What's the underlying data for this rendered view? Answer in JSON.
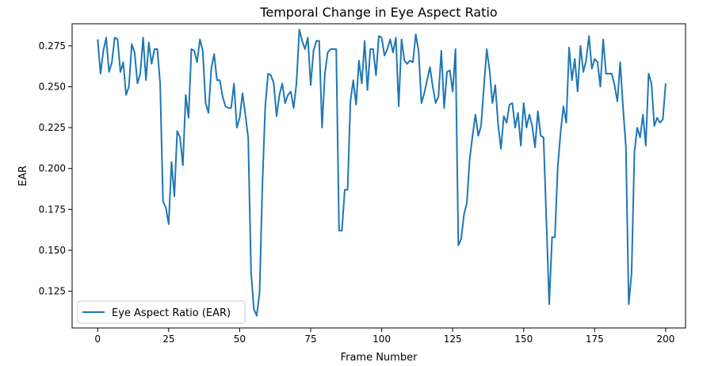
{
  "chart_data": {
    "type": "line",
    "title": "Temporal Change in Eye Aspect Ratio",
    "xlabel": "Frame Number",
    "ylabel": "EAR",
    "xlim": [
      -9,
      207
    ],
    "ylim": [
      0.1025,
      0.2885
    ],
    "xticks": [
      0,
      25,
      50,
      75,
      100,
      125,
      150,
      175,
      200
    ],
    "yticks": [
      0.125,
      0.15,
      0.175,
      0.2,
      0.225,
      0.25,
      0.275
    ],
    "ytick_labels": [
      "0.125",
      "0.150",
      "0.175",
      "0.200",
      "0.225",
      "0.250",
      "0.275"
    ],
    "grid": false,
    "legend_position": "lower-left",
    "series": [
      {
        "name": "Eye Aspect Ratio (EAR)",
        "color": "#1f77b4",
        "x": [
          0,
          1,
          2,
          3,
          4,
          5,
          6,
          7,
          8,
          9,
          10,
          11,
          12,
          13,
          14,
          15,
          16,
          17,
          18,
          19,
          20,
          21,
          22,
          23,
          24,
          25,
          26,
          27,
          28,
          29,
          30,
          31,
          32,
          33,
          34,
          35,
          36,
          37,
          38,
          39,
          40,
          41,
          42,
          43,
          44,
          45,
          46,
          47,
          48,
          49,
          50,
          51,
          52,
          53,
          54,
          55,
          56,
          57,
          58,
          59,
          60,
          61,
          62,
          63,
          64,
          65,
          66,
          67,
          68,
          69,
          70,
          71,
          72,
          73,
          74,
          75,
          76,
          77,
          78,
          79,
          80,
          81,
          82,
          83,
          84,
          85,
          86,
          87,
          88,
          89,
          90,
          91,
          92,
          93,
          94,
          95,
          96,
          97,
          98,
          99,
          100,
          101,
          102,
          103,
          104,
          105,
          106,
          107,
          108,
          109,
          110,
          111,
          112,
          113,
          114,
          115,
          116,
          117,
          118,
          119,
          120,
          121,
          122,
          123,
          124,
          125,
          126,
          127,
          128,
          129,
          130,
          131,
          132,
          133,
          134,
          135,
          136,
          137,
          138,
          139,
          140,
          141,
          142,
          143,
          144,
          145,
          146,
          147,
          148,
          149,
          150,
          151,
          152,
          153,
          154,
          155,
          156,
          157,
          158,
          159,
          160,
          161,
          162,
          163,
          164,
          165,
          166,
          167,
          168,
          169,
          170,
          171,
          172,
          173,
          174,
          175,
          176,
          177,
          178,
          179,
          180,
          181,
          182,
          183,
          184,
          185,
          186,
          187,
          188,
          189,
          190,
          191,
          192,
          193,
          194,
          195,
          196,
          197,
          198,
          199,
          200
        ],
        "values": [
          0.279,
          0.258,
          0.272,
          0.28,
          0.259,
          0.265,
          0.28,
          0.279,
          0.259,
          0.265,
          0.245,
          0.25,
          0.276,
          0.271,
          0.252,
          0.258,
          0.28,
          0.254,
          0.277,
          0.264,
          0.273,
          0.273,
          0.252,
          0.18,
          0.176,
          0.166,
          0.204,
          0.183,
          0.223,
          0.219,
          0.202,
          0.245,
          0.231,
          0.273,
          0.272,
          0.265,
          0.279,
          0.272,
          0.24,
          0.234,
          0.261,
          0.27,
          0.254,
          0.254,
          0.244,
          0.238,
          0.237,
          0.237,
          0.252,
          0.225,
          0.231,
          0.246,
          0.233,
          0.219,
          0.137,
          0.114,
          0.11,
          0.124,
          0.19,
          0.238,
          0.258,
          0.257,
          0.252,
          0.232,
          0.245,
          0.252,
          0.24,
          0.245,
          0.247,
          0.237,
          0.252,
          0.285,
          0.278,
          0.273,
          0.28,
          0.251,
          0.272,
          0.278,
          0.278,
          0.225,
          0.258,
          0.271,
          0.273,
          0.273,
          0.273,
          0.162,
          0.162,
          0.187,
          0.187,
          0.241,
          0.254,
          0.239,
          0.266,
          0.252,
          0.278,
          0.248,
          0.273,
          0.273,
          0.257,
          0.281,
          0.28,
          0.269,
          0.273,
          0.279,
          0.271,
          0.28,
          0.238,
          0.279,
          0.266,
          0.264,
          0.266,
          0.265,
          0.282,
          0.272,
          0.24,
          0.246,
          0.254,
          0.262,
          0.25,
          0.24,
          0.244,
          0.272,
          0.237,
          0.259,
          0.26,
          0.247,
          0.273,
          0.153,
          0.157,
          0.172,
          0.179,
          0.206,
          0.22,
          0.233,
          0.22,
          0.226,
          0.25,
          0.273,
          0.26,
          0.24,
          0.251,
          0.227,
          0.212,
          0.232,
          0.228,
          0.239,
          0.24,
          0.225,
          0.234,
          0.214,
          0.24,
          0.225,
          0.233,
          0.226,
          0.213,
          0.235,
          0.22,
          0.219,
          0.168,
          0.117,
          0.158,
          0.158,
          0.201,
          0.222,
          0.238,
          0.228,
          0.274,
          0.254,
          0.267,
          0.247,
          0.275,
          0.259,
          0.266,
          0.281,
          0.261,
          0.267,
          0.265,
          0.25,
          0.279,
          0.258,
          0.258,
          0.258,
          0.251,
          0.241,
          0.265,
          0.237,
          0.213,
          0.117,
          0.136,
          0.21,
          0.225,
          0.219,
          0.233,
          0.214,
          0.258,
          0.252,
          0.226,
          0.231,
          0.228,
          0.23,
          0.252
        ]
      }
    ]
  }
}
